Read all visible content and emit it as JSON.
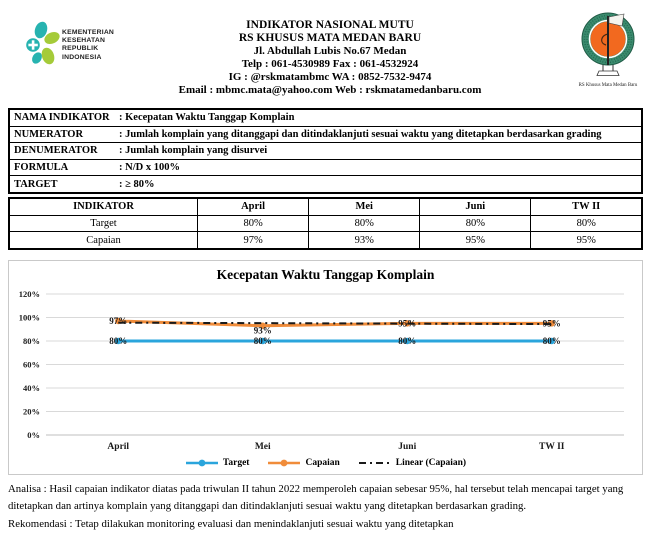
{
  "header": {
    "left_logo_lines": [
      "KEMENTERIAN",
      "KESEHATAN",
      "REPUBLIK",
      "INDONESIA"
    ],
    "center_lines": [
      "INDIKATOR NASIONAL MUTU",
      "RS KHUSUS MATA MEDAN BARU",
      "Jl. Abdullah Lubis No.67 Medan",
      "Telp : 061-4530989  Fax : 061-4532924",
      "IG : @rskmatambmc  WA : 0852-7532-9474",
      "Email : mbmc.mata@yahoo.com  Web : rskmatamedanbaru.com"
    ],
    "right_logo_caption": "RS Khusus Mata  Medan Baru"
  },
  "info_table": {
    "rows": [
      {
        "label": "NAMA INDIKATOR",
        "value": ": Kecepatan Waktu Tanggap Komplain"
      },
      {
        "label": "NUMERATOR",
        "value": ": Jumlah komplain yang ditanggapi dan ditindaklanjuti sesuai waktu yang ditetapkan berdasarkan grading"
      },
      {
        "label": "DENUMERATOR",
        "value": ": Jumlah komplain yang disurvei"
      },
      {
        "label": "FORMULA",
        "value": ": N/D x 100%"
      },
      {
        "label": "TARGET",
        "value": ": ≥ 80%"
      }
    ]
  },
  "data_table": {
    "headers": [
      "INDIKATOR",
      "April",
      "Mei",
      "Juni",
      "TW II"
    ],
    "rows": [
      {
        "label": "Target",
        "values": [
          "80%",
          "80%",
          "80%",
          "80%"
        ]
      },
      {
        "label": "Capaian",
        "values": [
          "97%",
          "93%",
          "95%",
          "95%"
        ]
      }
    ]
  },
  "chart_data": {
    "type": "line",
    "title": "Kecepatan Waktu Tanggap Komplain",
    "categories": [
      "April",
      "Mei",
      "Juni",
      "TW II"
    ],
    "series": [
      {
        "name": "Target",
        "values": [
          80,
          80,
          80,
          80
        ],
        "labels": [
          "80%",
          "80%",
          "80%",
          "80%"
        ],
        "color": "#2AA5DC"
      },
      {
        "name": "Capaian",
        "values": [
          97,
          93,
          95,
          95
        ],
        "labels": [
          "97%",
          "93%",
          "95%",
          "95%"
        ],
        "color": "#F08C3A",
        "label_dy": [
          0,
          5,
          0,
          0
        ]
      },
      {
        "name": "Linear (Capaian)",
        "values": [
          95.6,
          95.2,
          94.8,
          94.4
        ],
        "color": "#1a1a1a",
        "style": "dash-dot"
      }
    ],
    "y_ticks": [
      "0%",
      "20%",
      "40%",
      "60%",
      "80%",
      "100%",
      "120%"
    ],
    "y_step": 20,
    "ylim": [
      0,
      120
    ],
    "grid": true,
    "legend_position": "bottom",
    "colors": {
      "target": "#2AA5DC",
      "capaian": "#F08C3A",
      "trend": "#1a1a1a",
      "gridline": "#d9d9d9"
    }
  },
  "analysis": {
    "analisa": "Analisa : Hasil capaian indikator diatas pada triwulan II tahun 2022 memperoleh capaian sebesar 95%, hal tersebut telah mencapai target yang ditetapkan dan artinya komplain yang ditanggapi dan ditindaklanjuti sesuai waktu yang ditetapkan berdasarkan grading.",
    "rekomendasi": "Rekomendasi : Tetap dilakukan monitoring evaluasi dan menindaklanjuti sesuai waktu yang ditetapkan"
  }
}
